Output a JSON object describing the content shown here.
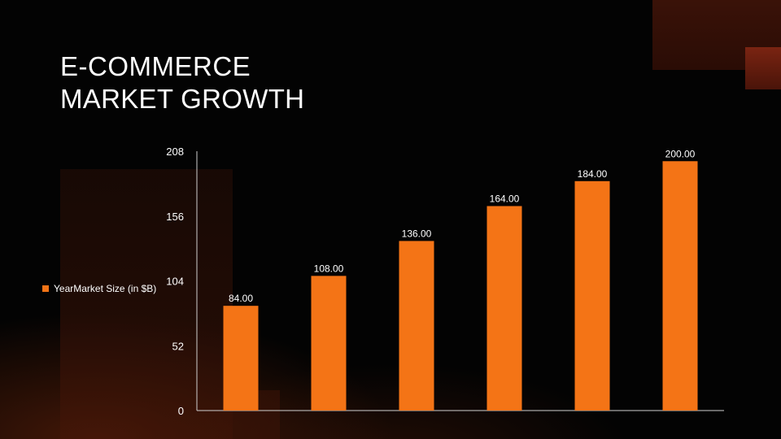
{
  "slide": {
    "title_line1": "E-COMMERCE",
    "title_line2": "MARKET GROWTH"
  },
  "colors": {
    "bar": "#f47416",
    "axis": "#cfcfcf",
    "text": "#ffffff",
    "background": "#030303"
  },
  "chart_data": {
    "type": "bar",
    "categories": [
      "",
      "",
      "",
      "",
      "",
      ""
    ],
    "series": [
      {
        "name": "YearMarket Size (in $B)",
        "values": [
          84.0,
          108.0,
          136.0,
          164.0,
          184.0,
          200.0
        ],
        "value_labels": [
          "84.00",
          "108.00",
          "136.00",
          "164.00",
          "184.00",
          "200.00"
        ]
      }
    ],
    "title": "",
    "xlabel": "",
    "ylabel": "",
    "ylim": [
      0,
      208
    ],
    "yticks": [
      0,
      52,
      104,
      156,
      208
    ],
    "grid": false,
    "legend": "left"
  }
}
